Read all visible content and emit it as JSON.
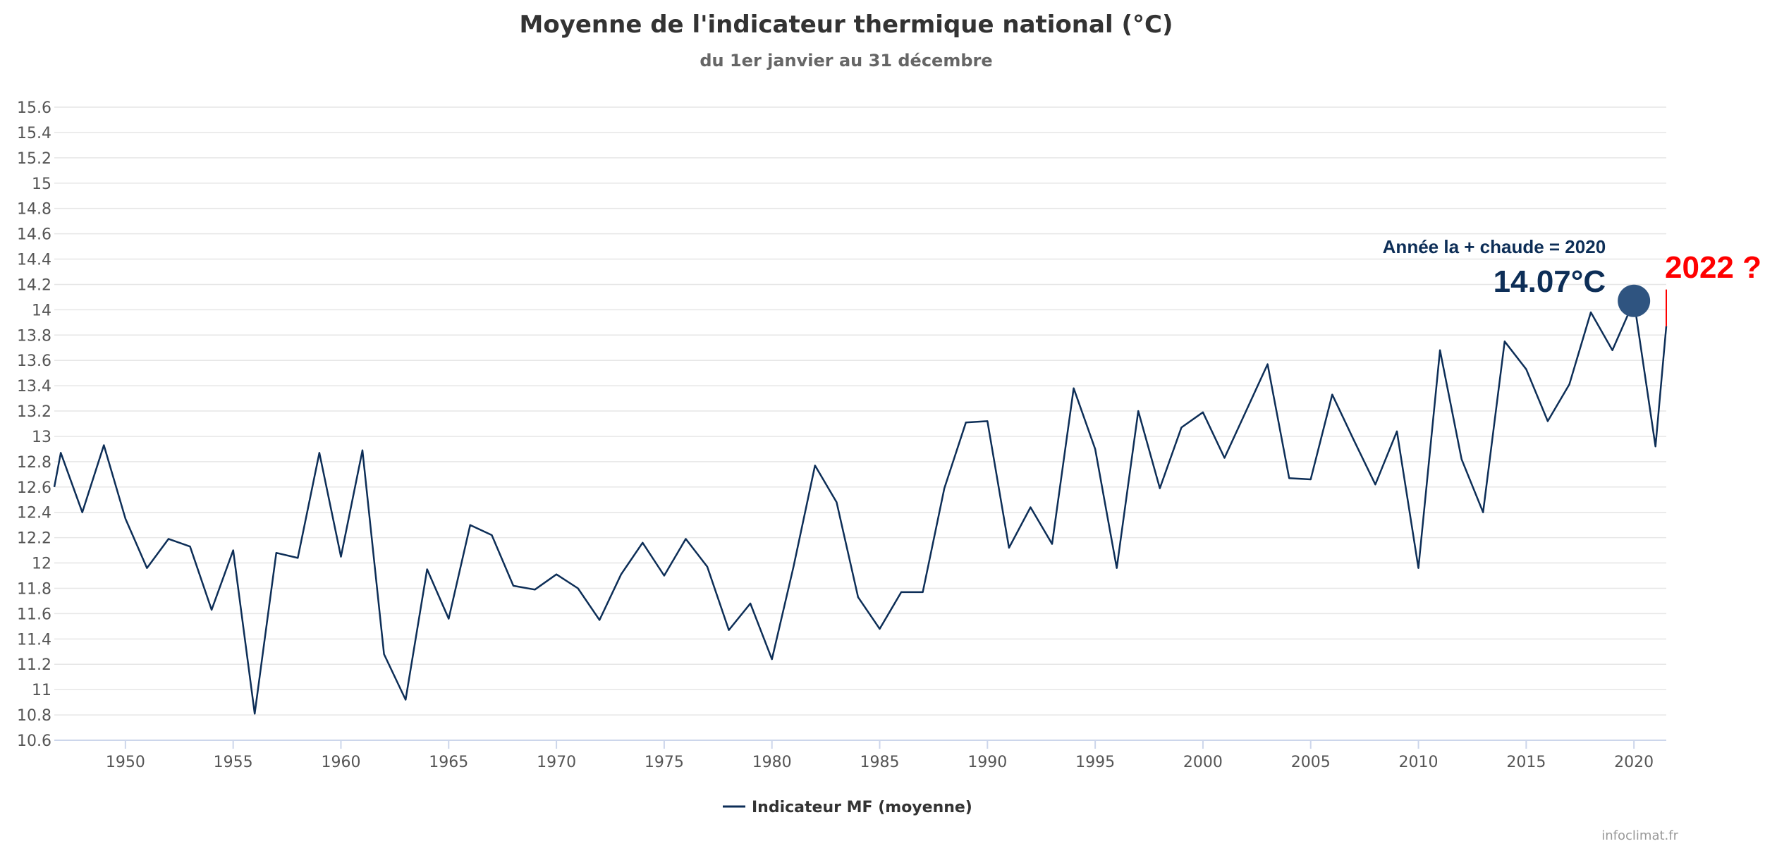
{
  "chart_data": {
    "type": "line",
    "title": "Moyenne de l'indicateur thermique national (°C)",
    "subtitle": "du 1er janvier au 31 décembre",
    "xlabel": "",
    "ylabel": "",
    "xlim": [
      1946.7,
      2021.5
    ],
    "ylim": [
      10.6,
      15.6
    ],
    "x_ticks": [
      "1950",
      "1955",
      "1960",
      "1965",
      "1970",
      "1975",
      "1980",
      "1985",
      "1990",
      "1995",
      "2000",
      "2005",
      "2010",
      "2015",
      "2020"
    ],
    "y_ticks": [
      "10.6",
      "10.8",
      "11",
      "11.2",
      "11.4",
      "11.6",
      "11.8",
      "12",
      "12.2",
      "12.4",
      "12.6",
      "12.8",
      "13",
      "13.2",
      "13.4",
      "13.6",
      "13.8",
      "14",
      "14.2",
      "14.4",
      "14.6",
      "14.8",
      "15",
      "15.2",
      "15.4",
      "15.6"
    ],
    "grid": true,
    "legend_position": "bottom-center",
    "series": [
      {
        "name": "Indicateur MF (moyenne)",
        "color": "#0d2e57",
        "x": [
          1946.7,
          1947,
          1948,
          1949,
          1950,
          1951,
          1952,
          1953,
          1954,
          1955,
          1956,
          1957,
          1958,
          1959,
          1960,
          1961,
          1962,
          1963,
          1964,
          1965,
          1966,
          1967,
          1968,
          1969,
          1970,
          1971,
          1972,
          1973,
          1974,
          1975,
          1976,
          1977,
          1978,
          1979,
          1980,
          1981,
          1982,
          1983,
          1984,
          1985,
          1986,
          1987,
          1988,
          1989,
          1990,
          1991,
          1992,
          1993,
          1994,
          1995,
          1996,
          1997,
          1998,
          1999,
          2000,
          2001,
          2002,
          2003,
          2004,
          2005,
          2006,
          2007,
          2008,
          2009,
          2010,
          2011,
          2012,
          2013,
          2014,
          2015,
          2016,
          2017,
          2018,
          2019,
          2020,
          2021,
          2021.5
        ],
        "values": [
          12.6,
          12.87,
          12.4,
          12.93,
          12.35,
          11.96,
          12.19,
          12.13,
          11.63,
          12.1,
          10.81,
          12.08,
          12.04,
          12.87,
          12.05,
          12.89,
          11.28,
          10.92,
          11.95,
          11.56,
          12.3,
          12.22,
          11.82,
          11.79,
          11.91,
          11.8,
          11.55,
          11.91,
          12.16,
          11.9,
          12.19,
          11.97,
          11.47,
          11.68,
          11.24,
          11.97,
          12.77,
          12.48,
          11.73,
          11.48,
          11.77,
          11.77,
          12.59,
          13.11,
          13.12,
          12.12,
          12.44,
          12.15,
          13.38,
          12.9,
          11.96,
          13.2,
          12.59,
          13.07,
          13.19,
          12.83,
          13.2,
          13.57,
          12.67,
          12.66,
          13.33,
          12.97,
          12.62,
          13.04,
          11.96,
          13.68,
          12.82,
          12.4,
          13.75,
          13.53,
          13.12,
          13.41,
          13.98,
          13.68,
          14.07,
          12.92,
          13.87
        ]
      }
    ],
    "annotations": {
      "hottest_label": "Année la + chaude = 2020",
      "hottest_value": "14.07°C",
      "hottest_year": 2020,
      "hottest_temp": 14.07,
      "marker_color": "#2f5480",
      "forecast_label": "2022 ?",
      "forecast_color": "#ff0000",
      "forecast_year": 2021.5,
      "forecast_range": [
        13.87,
        14.16
      ]
    }
  },
  "credit": "infoclimat.fr"
}
